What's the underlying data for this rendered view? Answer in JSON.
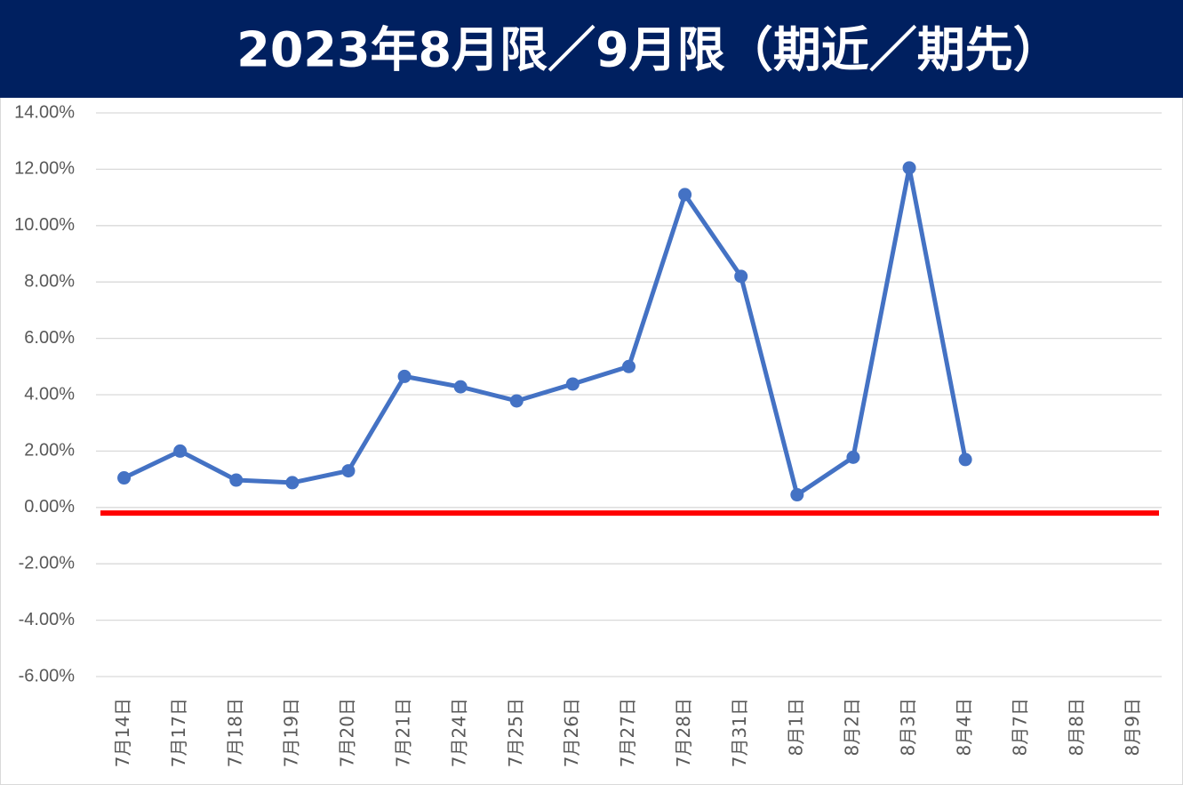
{
  "chart_data": {
    "type": "line",
    "title": "2023年8月限／9月限（期近／期先）",
    "categories": [
      "7月14日",
      "7月17日",
      "7月18日",
      "7月19日",
      "7月20日",
      "7月21日",
      "7月24日",
      "7月25日",
      "7月26日",
      "7月27日",
      "7月28日",
      "7月31日",
      "8月1日",
      "8月2日",
      "8月3日",
      "8月4日",
      "8月7日",
      "8月8日",
      "8月9日"
    ],
    "values": [
      1.05,
      2.0,
      0.97,
      0.88,
      1.3,
      4.65,
      4.28,
      3.78,
      4.38,
      5.0,
      11.1,
      8.2,
      0.45,
      1.78,
      12.05,
      1.7,
      null,
      null,
      null
    ],
    "color": "#4472c4",
    "reference_line": {
      "value": -0.2,
      "color": "#ff0000"
    },
    "ylim": [
      -6,
      14
    ],
    "yticks": [
      {
        "value": -6,
        "label": "-6.00%"
      },
      {
        "value": -4,
        "label": "-4.00%"
      },
      {
        "value": -2,
        "label": "-2.00%"
      },
      {
        "value": 0,
        "label": "0.00%"
      },
      {
        "value": 2,
        "label": "2.00%"
      },
      {
        "value": 4,
        "label": "4.00%"
      },
      {
        "value": 6,
        "label": "6.00%"
      },
      {
        "value": 8,
        "label": "8.00%"
      },
      {
        "value": 10,
        "label": "10.00%"
      },
      {
        "value": 12,
        "label": "12.00%"
      },
      {
        "value": 14,
        "label": "14.00%"
      }
    ],
    "grid": true
  }
}
